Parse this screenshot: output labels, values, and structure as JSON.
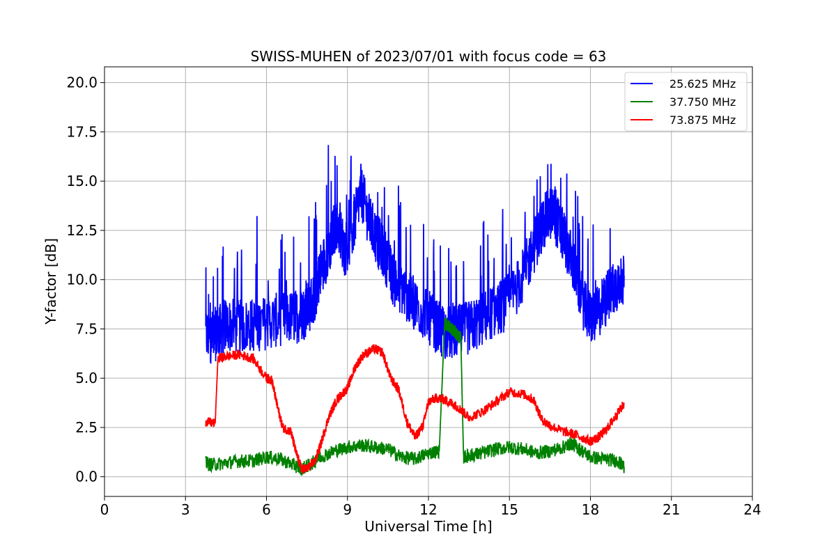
{
  "chart_data": {
    "type": "line",
    "title": "SWISS-MUHEN of 2023/07/01 with focus code = 63",
    "xlabel": "Universal Time [h]",
    "ylabel": "Y-factor [dB]",
    "xlim": [
      0,
      24
    ],
    "ylim": [
      -1,
      20.8
    ],
    "xticks": [
      0,
      3,
      6,
      9,
      12,
      15,
      18,
      21,
      24
    ],
    "yticks": [
      0.0,
      2.5,
      5.0,
      7.5,
      10.0,
      12.5,
      15.0,
      17.5,
      20.0
    ],
    "grid": true,
    "legend_position": "top-right",
    "series": [
      {
        "name": "25.625 MHz",
        "color": "#0000ff",
        "x": [
          3.75,
          4.0,
          4.25,
          4.5,
          5.0,
          5.5,
          6.0,
          6.5,
          7.0,
          7.3,
          7.5,
          7.8,
          8.0,
          8.3,
          8.6,
          8.9,
          9.2,
          9.5,
          9.8,
          10.1,
          10.4,
          10.7,
          11.0,
          11.3,
          11.6,
          12.0,
          12.3,
          12.6,
          12.9,
          13.2,
          13.6,
          14.0,
          14.4,
          14.8,
          15.2,
          15.6,
          16.0,
          16.3,
          16.6,
          16.9,
          17.2,
          17.5,
          17.8,
          18.1,
          18.4,
          18.7,
          19.0,
          19.25
        ],
        "y": [
          7.2,
          7.1,
          7.4,
          7.7,
          7.6,
          7.7,
          7.8,
          8.0,
          8.1,
          8.2,
          8.5,
          9.2,
          10.5,
          11.5,
          13.0,
          11.5,
          12.5,
          14.5,
          13.0,
          12.0,
          11.2,
          10.0,
          9.6,
          9.0,
          8.6,
          8.1,
          7.6,
          7.3,
          7.3,
          7.4,
          7.6,
          8.0,
          8.4,
          8.7,
          9.4,
          10.5,
          12.0,
          13.0,
          13.5,
          12.5,
          11.5,
          10.0,
          8.5,
          8.0,
          8.6,
          9.3,
          9.8,
          10.2
        ]
      },
      {
        "name": "37.750 MHz",
        "color": "#008000",
        "x": [
          3.75,
          4.0,
          4.5,
          5.0,
          5.5,
          6.0,
          6.5,
          7.0,
          7.3,
          7.6,
          8.0,
          8.5,
          9.0,
          9.5,
          10.0,
          10.5,
          11.0,
          11.5,
          12.0,
          12.4,
          12.6,
          12.8,
          13.0,
          13.2,
          13.3,
          13.6,
          14.0,
          14.5,
          15.0,
          15.5,
          16.0,
          16.5,
          17.0,
          17.3,
          17.6,
          18.0,
          18.5,
          19.0,
          19.25
        ],
        "y": [
          0.7,
          0.6,
          0.7,
          0.8,
          0.8,
          1.0,
          0.9,
          0.6,
          0.4,
          0.6,
          1.0,
          1.3,
          1.5,
          1.6,
          1.5,
          1.4,
          1.0,
          0.9,
          1.2,
          1.3,
          7.8,
          7.6,
          7.3,
          7.0,
          1.0,
          1.1,
          1.2,
          1.4,
          1.5,
          1.4,
          1.2,
          1.3,
          1.5,
          1.7,
          1.4,
          1.0,
          0.9,
          0.8,
          0.5
        ]
      },
      {
        "name": "73.875 MHz",
        "color": "#ff0000",
        "x": [
          3.75,
          4.1,
          4.2,
          4.5,
          5.0,
          5.5,
          6.0,
          6.2,
          6.4,
          6.6,
          6.9,
          7.1,
          7.3,
          7.5,
          7.8,
          8.0,
          8.3,
          8.6,
          9.0,
          9.3,
          9.6,
          10.0,
          10.3,
          10.6,
          10.9,
          11.2,
          11.5,
          11.8,
          12.0,
          12.3,
          12.6,
          12.9,
          13.2,
          13.5,
          14.0,
          14.5,
          15.0,
          15.5,
          15.9,
          16.2,
          16.5,
          17.0,
          17.5,
          18.0,
          18.3,
          18.6,
          18.9,
          19.25
        ],
        "y": [
          2.8,
          2.7,
          6.0,
          6.1,
          6.2,
          6.0,
          5.0,
          4.9,
          3.6,
          2.5,
          2.3,
          1.2,
          0.4,
          0.4,
          0.8,
          1.6,
          3.0,
          3.9,
          4.5,
          5.6,
          6.2,
          6.5,
          6.3,
          5.0,
          4.4,
          2.8,
          2.0,
          2.6,
          3.8,
          4.0,
          3.9,
          3.7,
          3.4,
          3.0,
          3.3,
          3.8,
          4.3,
          4.2,
          3.9,
          2.9,
          2.6,
          2.3,
          2.1,
          1.8,
          2.0,
          2.4,
          3.0,
          3.7
        ]
      }
    ]
  }
}
